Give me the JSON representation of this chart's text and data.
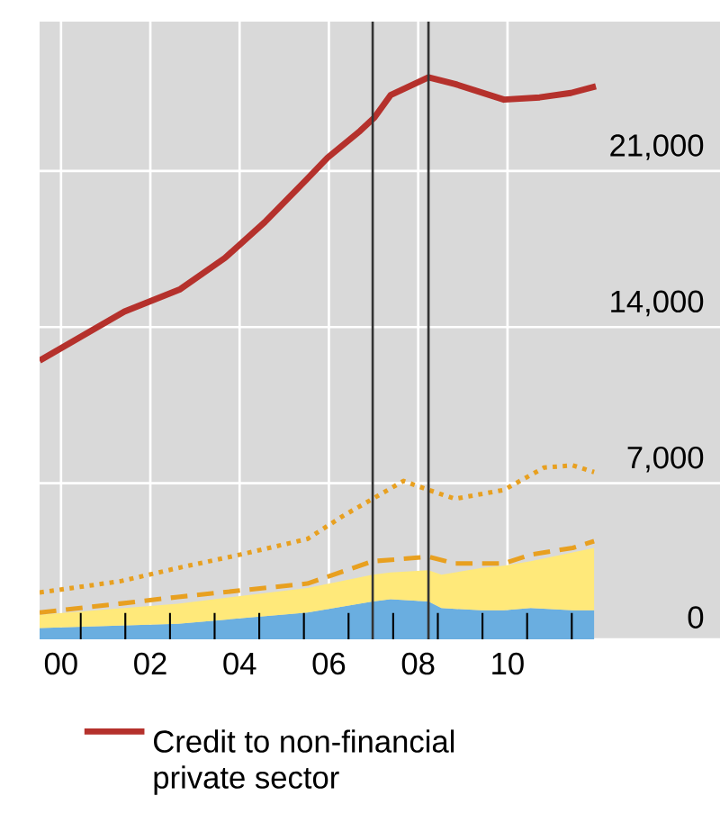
{
  "chart_data": {
    "type": "line",
    "stacked": true,
    "xlim": [
      1999.52,
      2014.76
    ],
    "ylim": [
      0,
      27700
    ],
    "xticks": [
      {
        "value": 2000,
        "label": "00"
      },
      {
        "value": 2002,
        "label": "02"
      },
      {
        "value": 2004,
        "label": "04"
      },
      {
        "value": 2006,
        "label": "06"
      },
      {
        "value": 2008,
        "label": "08"
      },
      {
        "value": 2010,
        "label": "10"
      },
      {
        "value": 2000.44,
        "label": null
      },
      {
        "value": 2001.44,
        "label": null
      },
      {
        "value": 2002.44,
        "label": null
      },
      {
        "value": 2003.44,
        "label": null
      },
      {
        "value": 2004.44,
        "label": null
      },
      {
        "value": 2005.44,
        "label": null
      },
      {
        "value": 2006.44,
        "label": null
      },
      {
        "value": 2007.44,
        "label": null
      },
      {
        "value": 2008.44,
        "label": null
      },
      {
        "value": 2009.44,
        "label": null
      },
      {
        "value": 2010.44,
        "label": null
      },
      {
        "value": 2011.44,
        "label": null
      }
    ],
    "yticks": [
      0,
      {
        "value": 7000,
        "label": "7,000"
      },
      {
        "value": 14000,
        "label": "14,000"
      },
      {
        "value": 21000,
        "label": "21,000"
      }
    ],
    "grid": true,
    "legend": "bottom",
    "series": [
      {
        "type": "area",
        "color": "#6aaee0",
        "x": [
          1999.52,
          2002.62,
          2005.52,
          2006.98,
          2007.38,
          2008.23,
          2008.52,
          2009.42,
          2009.92,
          2010.52,
          2011.46,
          2011.94
        ],
        "values": [
          500,
          700,
          1200,
          1700,
          1800,
          1700,
          1400,
          1300,
          1300,
          1400,
          1300,
          1300
        ]
      },
      {
        "type": "area",
        "color": "#ffe97a",
        "x": [
          1999.52,
          2002.62,
          2005.52,
          2006.98,
          2007.38,
          2008.23,
          2008.52,
          2009.42,
          2009.92,
          2010.52,
          2011.46,
          2011.94
        ],
        "values": [
          600,
          900,
          1100,
          1200,
          1200,
          1400,
          1500,
          1900,
          2000,
          2100,
          2600,
          2800
        ]
      },
      {
        "type": "line",
        "color": "#e8a020",
        "line_style": "dashed",
        "x": [
          1999.52,
          2001.32,
          2002.62,
          2005.52,
          2006.98,
          2008.23,
          2008.83,
          2009.92,
          2010.52,
          2011.46,
          2011.94
        ],
        "values": [
          1200,
          1600,
          1900,
          2500,
          3500,
          3700,
          3400,
          3400,
          3800,
          4100,
          4400
        ]
      },
      {
        "color": "#e8a020",
        "line_style": "dotted",
        "x": [
          1999.52,
          2001.32,
          2002.62,
          2004.02,
          2005.52,
          2006.29,
          2006.98,
          2007.67,
          2008.23,
          2008.83,
          2009.92,
          2010.82,
          2011.46,
          2011.94
        ],
        "values": [
          2100,
          2600,
          3200,
          3800,
          4500,
          5500,
          6300,
          7100,
          6700,
          6300,
          6700,
          7700,
          7800,
          7500
        ]
      },
      {
        "name": "Credit to non-financial private sector",
        "color": "#b5312c",
        "line_style": "solid",
        "x": [
          1999.52,
          2001.42,
          2002.67,
          2003.67,
          2004.56,
          2005.49,
          2005.97,
          2006.7,
          2007.02,
          2007.38,
          2008.23,
          2008.83,
          2009.92,
          2010.72,
          2011.42,
          2011.98
        ],
        "values": [
          12500,
          14700,
          15700,
          17100,
          18700,
          20600,
          21600,
          22800,
          23400,
          24400,
          25200,
          24900,
          24200,
          24300,
          24500,
          24800
        ]
      }
    ],
    "ref_lines": [
      {
        "axis": "x",
        "value": 2006.98,
        "color": "#333333"
      },
      {
        "axis": "x",
        "value": 2008.23,
        "color": "#333333"
      }
    ]
  }
}
